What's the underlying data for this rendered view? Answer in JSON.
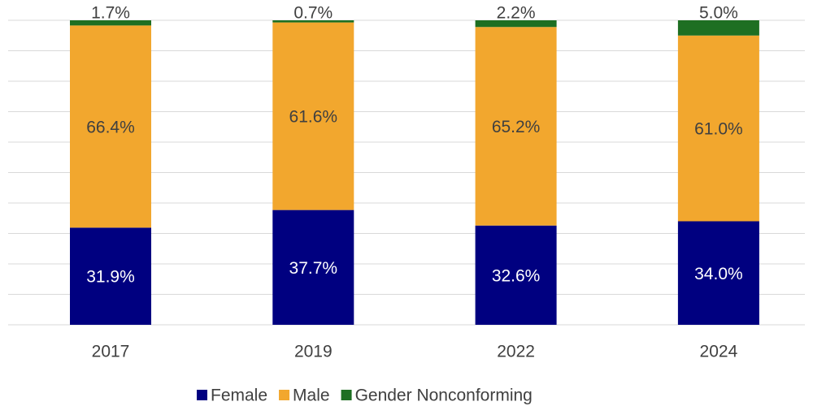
{
  "chart_data": {
    "type": "stacked_bar",
    "categories": [
      "2017",
      "2019",
      "2022",
      "2024"
    ],
    "series": [
      {
        "name": "Female",
        "color": "#000080",
        "values": [
          31.9,
          37.7,
          32.6,
          34.0
        ],
        "value_labels": [
          "31.9%",
          "37.7%",
          "32.6%",
          "34.0%"
        ]
      },
      {
        "name": "Male",
        "color": "#f2a72e",
        "values": [
          66.4,
          61.6,
          65.2,
          61.0
        ],
        "value_labels": [
          "66.4%",
          "61.6%",
          "65.2%",
          "61.0%"
        ]
      },
      {
        "name": "Gender Nonconforming",
        "color": "#1e6f22",
        "values": [
          1.7,
          0.7,
          2.2,
          5.0
        ],
        "value_labels": [
          "1.7%",
          "0.7%",
          "2.2%",
          "5.0%"
        ]
      }
    ],
    "ylim": [
      0,
      100
    ],
    "yticks": [
      0,
      10,
      20,
      30,
      40,
      50,
      60,
      70,
      80,
      90,
      100
    ],
    "grid": true
  }
}
